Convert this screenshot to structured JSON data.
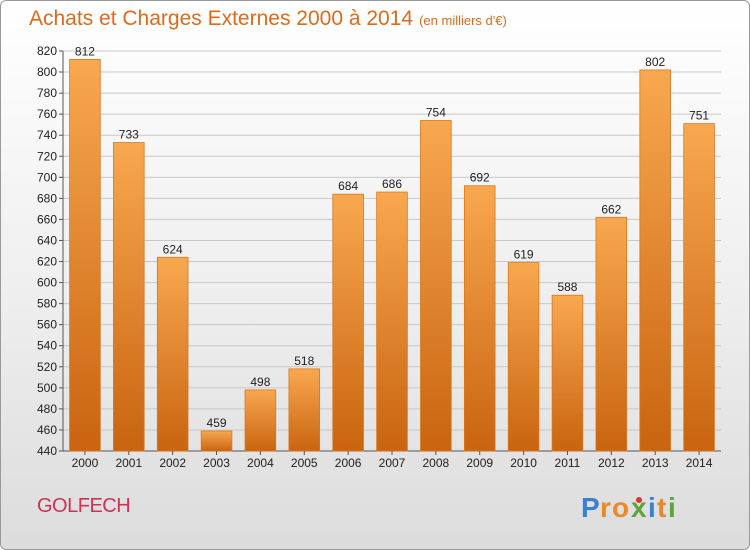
{
  "title": "Achats et Charges Externes 2000 à 2014",
  "unit": "(en milliers d'€)",
  "commune": "GOLFECH",
  "logo_text": "Proxiti",
  "colors": {
    "bar_top": "#f8a850",
    "bar_bottom": "#c96410",
    "bar_edge": "#d7781e",
    "title": "#e06a1a",
    "commune": "#cc3355",
    "grid": "#c8c8c8"
  },
  "chart_data": {
    "type": "bar",
    "categories": [
      "2000",
      "2001",
      "2002",
      "2003",
      "2004",
      "2005",
      "2006",
      "2007",
      "2008",
      "2009",
      "2010",
      "2011",
      "2012",
      "2013",
      "2014"
    ],
    "values": [
      812,
      733,
      624,
      459,
      498,
      518,
      684,
      686,
      754,
      692,
      619,
      588,
      662,
      802,
      751
    ],
    "title": "Achats et Charges Externes 2000 à 2014",
    "subtitle": "(en milliers d'€)",
    "xlabel": "",
    "ylabel": "",
    "ylim": [
      440,
      820
    ],
    "yticks": [
      440,
      460,
      480,
      500,
      520,
      540,
      560,
      580,
      600,
      620,
      640,
      660,
      680,
      700,
      720,
      740,
      760,
      780,
      800,
      820
    ],
    "grid": true,
    "data_labels": true
  }
}
